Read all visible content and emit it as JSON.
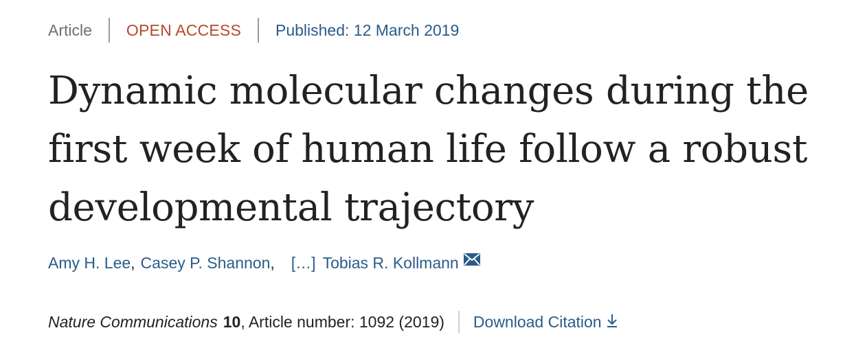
{
  "meta": {
    "article_type": "Article",
    "access": "OPEN ACCESS",
    "published": "Published: 12 March 2019"
  },
  "title": {
    "line1": "Dynamic molecular changes during the",
    "line2": "first week of human life follow a robust",
    "line3": "developmental trajectory"
  },
  "authors": {
    "first": "Amy H. Lee",
    "comma1": ",",
    "second": "Casey P. Shannon",
    "comma2": ",",
    "ellipsis": "[…]",
    "last": "Tobias R. Kollmann",
    "contact_icon": "envelope-icon"
  },
  "citation": {
    "journal": "Nature Communications",
    "volume": "10",
    "article_number": ", Article number: 1092 (2019)",
    "download_label": "Download Citation",
    "download_icon": "download-arrow-icon"
  },
  "colors": {
    "link": "#2a5b8a",
    "access": "#b7482a",
    "muted": "#6f6f6f",
    "text": "#222222"
  }
}
